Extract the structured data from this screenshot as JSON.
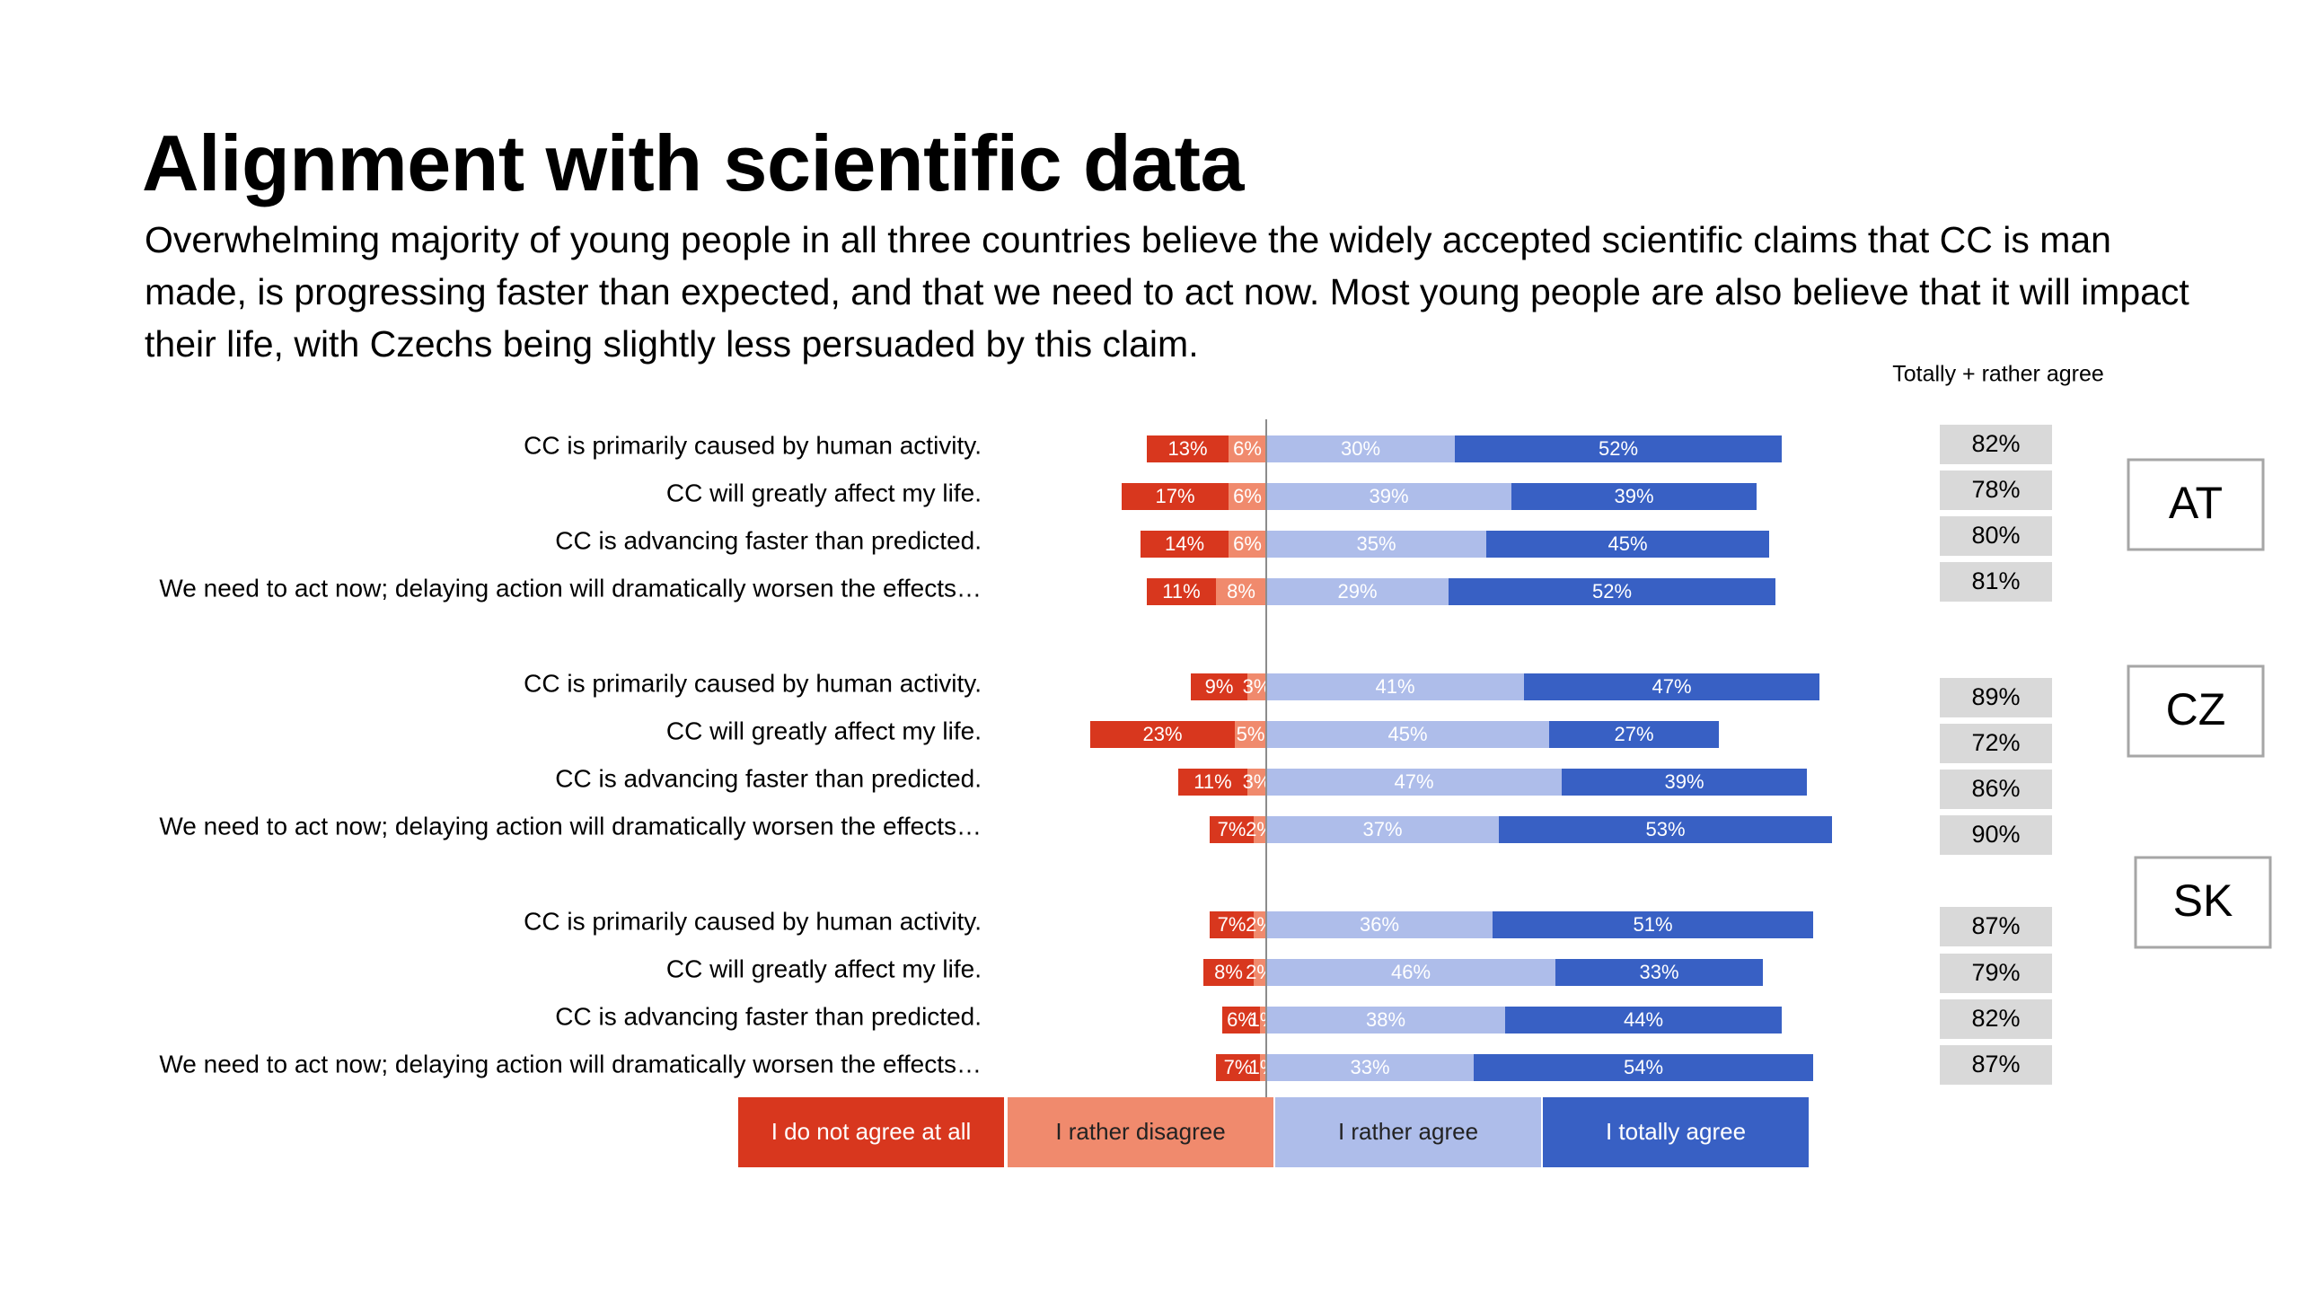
{
  "slide": {
    "title": "Alignment with scientific data",
    "subtitle": "Overwhelming majority of young people in all three countries believe the widely accepted scientific claims that CC is  man made, is progressing faster than expected, and that we need to act now. Most young people are also believe that it will impact their life, with Czechs being slightly less persuaded by this claim."
  },
  "chart_data": {
    "type": "bar",
    "orientation": "horizontal-diverging",
    "stacked": true,
    "totals_header": "Totally + rather agree",
    "legend_placement": "bottom",
    "grid": false,
    "colors": {
      "I do not agree at all": "#d8371e",
      "I rather disagree": "#f08a6d",
      "I rather agree": "#aebdea",
      "I totally agree": "#3860c4"
    },
    "legend": [
      "I do not agree at all",
      "I rather disagree",
      "I rather agree",
      "I totally agree"
    ],
    "groups": [
      {
        "country": "AT",
        "rows": [
          {
            "label": "CC is primarily caused by human activity.",
            "values": [
              13,
              6,
              30,
              52
            ],
            "labels": [
              "13%",
              "6%",
              "30%",
              "52%"
            ],
            "total": "82%"
          },
          {
            "label": "CC will greatly affect my life.",
            "values": [
              17,
              6,
              39,
              39
            ],
            "labels": [
              "17%",
              "6%",
              "39%",
              "39%"
            ],
            "total": "78%"
          },
          {
            "label": "CC is advancing faster than predicted.",
            "values": [
              14,
              6,
              35,
              45
            ],
            "labels": [
              "14%",
              "6%",
              "35%",
              "45%"
            ],
            "total": "80%"
          },
          {
            "label": "We need to act now; delaying action will dramatically worsen the effects…",
            "values": [
              11,
              8,
              29,
              52
            ],
            "labels": [
              "11%",
              "8%",
              "29%",
              "52%"
            ],
            "total": "81%"
          }
        ]
      },
      {
        "country": "CZ",
        "rows": [
          {
            "label": "CC is primarily caused by human activity.",
            "values": [
              9,
              3,
              41,
              47
            ],
            "labels": [
              "9%",
              "3%",
              "41%",
              "47%"
            ],
            "total": "89%"
          },
          {
            "label": "CC will greatly affect my life.",
            "values": [
              23,
              5,
              45,
              27
            ],
            "labels": [
              "23%",
              "5%",
              "45%",
              "27%"
            ],
            "total": "72%"
          },
          {
            "label": "CC is advancing faster than predicted.",
            "values": [
              11,
              3,
              47,
              39
            ],
            "labels": [
              "11%",
              "3%",
              "47%",
              "39%"
            ],
            "total": "86%"
          },
          {
            "label": "We need to act now; delaying action will dramatically worsen the effects…",
            "values": [
              7,
              2,
              37,
              53
            ],
            "labels": [
              "7%",
              "2%",
              "37%",
              "53%"
            ],
            "total": "90%"
          }
        ]
      },
      {
        "country": "SK",
        "rows": [
          {
            "label": "CC is primarily caused by human activity.",
            "values": [
              7,
              2,
              36,
              51
            ],
            "labels": [
              "7%",
              "2%",
              "36%",
              "51%"
            ],
            "total": "87%"
          },
          {
            "label": "CC will greatly affect my life.",
            "values": [
              8,
              2,
              46,
              33
            ],
            "labels": [
              "8%",
              "2%",
              "46%",
              "33%"
            ],
            "total": "79%"
          },
          {
            "label": "CC is advancing faster than predicted.",
            "values": [
              6,
              1,
              38,
              44
            ],
            "labels": [
              "6%",
              "1%",
              "38%",
              "44%"
            ],
            "total": "82%"
          },
          {
            "label": "We need to act now; delaying action will dramatically worsen the effects…",
            "values": [
              7,
              1,
              33,
              54
            ],
            "labels": [
              "7%",
              "1%",
              "33%",
              "54%"
            ],
            "total": "87%"
          }
        ]
      }
    ]
  }
}
